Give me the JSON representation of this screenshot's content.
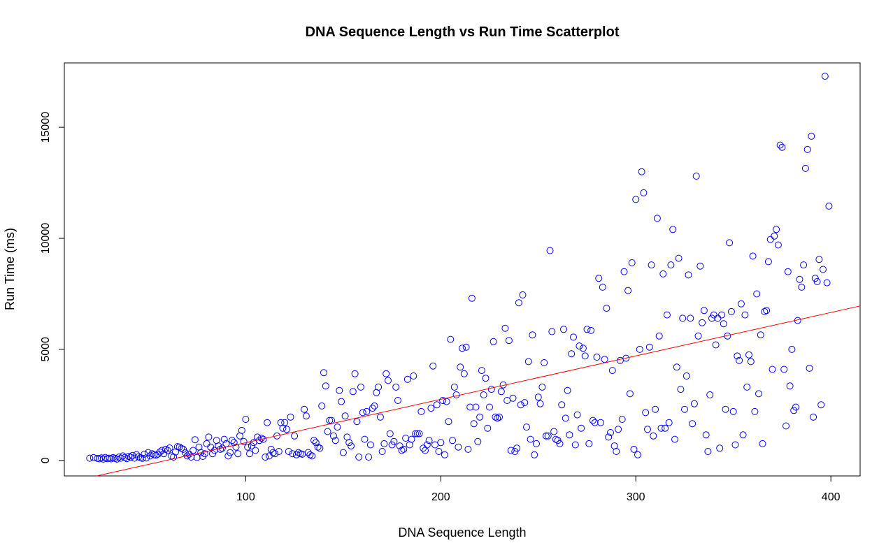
{
  "chart_data": {
    "type": "scatter",
    "title": "DNA Sequence Length vs Run Time Scatterplot",
    "xlabel": "DNA Sequence Length",
    "ylabel": "Run Time (ms)",
    "xlim": [
      7,
      415
    ],
    "ylim": [
      -700,
      17900
    ],
    "x_ticks": [
      100,
      200,
      300,
      400
    ],
    "x_tick_labels": [
      "100",
      "200",
      "300",
      "400"
    ],
    "y_ticks": [
      0,
      5000,
      10000,
      15000
    ],
    "y_tick_labels": [
      "0",
      "5000",
      "10000",
      "15000"
    ],
    "grid": false,
    "legend": "none",
    "point_color": "#0000ff",
    "line_color": "#ff0000",
    "regression_line": {
      "slope": 19.55,
      "intercept": -1160
    },
    "points": [
      [
        20,
        100
      ],
      [
        22,
        120
      ],
      [
        24,
        90
      ],
      [
        25,
        70
      ],
      [
        26,
        110
      ],
      [
        27,
        60
      ],
      [
        28,
        130
      ],
      [
        29,
        80
      ],
      [
        30,
        100
      ],
      [
        31,
        70
      ],
      [
        32,
        120
      ],
      [
        33,
        90
      ],
      [
        34,
        60
      ],
      [
        35,
        150
      ],
      [
        36,
        100
      ],
      [
        37,
        200
      ],
      [
        38,
        130
      ],
      [
        39,
        80
      ],
      [
        40,
        180
      ],
      [
        41,
        140
      ],
      [
        42,
        220
      ],
      [
        43,
        100
      ],
      [
        44,
        260
      ],
      [
        45,
        160
      ],
      [
        46,
        120
      ],
      [
        47,
        90
      ],
      [
        48,
        280
      ],
      [
        49,
        110
      ],
      [
        50,
        350
      ],
      [
        51,
        200
      ],
      [
        52,
        300
      ],
      [
        53,
        250
      ],
      [
        54,
        230
      ],
      [
        55,
        280
      ],
      [
        56,
        380
      ],
      [
        57,
        450
      ],
      [
        58,
        300
      ],
      [
        59,
        500
      ],
      [
        60,
        450
      ],
      [
        61,
        560
      ],
      [
        62,
        200
      ],
      [
        63,
        150
      ],
      [
        64,
        380
      ],
      [
        65,
        620
      ],
      [
        66,
        600
      ],
      [
        67,
        540
      ],
      [
        68,
        500
      ],
      [
        69,
        350
      ],
      [
        70,
        200
      ],
      [
        71,
        280
      ],
      [
        72,
        150
      ],
      [
        73,
        450
      ],
      [
        74,
        930
      ],
      [
        75,
        130
      ],
      [
        76,
        600
      ],
      [
        77,
        350
      ],
      [
        78,
        180
      ],
      [
        79,
        300
      ],
      [
        80,
        750
      ],
      [
        81,
        1050
      ],
      [
        82,
        600
      ],
      [
        83,
        300
      ],
      [
        84,
        450
      ],
      [
        85,
        900
      ],
      [
        86,
        650
      ],
      [
        87,
        500
      ],
      [
        88,
        550
      ],
      [
        89,
        950
      ],
      [
        90,
        750
      ],
      [
        91,
        200
      ],
      [
        92,
        350
      ],
      [
        93,
        900
      ],
      [
        94,
        800
      ],
      [
        95,
        600
      ],
      [
        96,
        300
      ],
      [
        97,
        1100
      ],
      [
        98,
        1350
      ],
      [
        99,
        850
      ],
      [
        100,
        1850
      ],
      [
        101,
        600
      ],
      [
        102,
        300
      ],
      [
        103,
        650
      ],
      [
        104,
        800
      ],
      [
        105,
        450
      ],
      [
        106,
        1050
      ],
      [
        107,
        900
      ],
      [
        108,
        1000
      ],
      [
        109,
        950
      ],
      [
        110,
        150
      ],
      [
        111,
        1700
      ],
      [
        112,
        200
      ],
      [
        113,
        500
      ],
      [
        114,
        350
      ],
      [
        115,
        300
      ],
      [
        116,
        1100
      ],
      [
        117,
        400
      ],
      [
        118,
        1700
      ],
      [
        119,
        1450
      ],
      [
        120,
        1700
      ],
      [
        121,
        1400
      ],
      [
        122,
        400
      ],
      [
        123,
        1950
      ],
      [
        124,
        300
      ],
      [
        125,
        1100
      ],
      [
        126,
        250
      ],
      [
        127,
        350
      ],
      [
        128,
        300
      ],
      [
        129,
        280
      ],
      [
        130,
        2300
      ],
      [
        131,
        2000
      ],
      [
        132,
        350
      ],
      [
        133,
        250
      ],
      [
        134,
        200
      ],
      [
        135,
        900
      ],
      [
        136,
        800
      ],
      [
        137,
        600
      ],
      [
        138,
        550
      ],
      [
        139,
        2450
      ],
      [
        140,
        3950
      ],
      [
        141,
        3350
      ],
      [
        142,
        1300
      ],
      [
        143,
        1800
      ],
      [
        144,
        1800
      ],
      [
        145,
        1100
      ],
      [
        146,
        900
      ],
      [
        147,
        1500
      ],
      [
        148,
        3150
      ],
      [
        149,
        2650
      ],
      [
        150,
        350
      ],
      [
        151,
        2000
      ],
      [
        152,
        1050
      ],
      [
        153,
        800
      ],
      [
        154,
        650
      ],
      [
        155,
        3100
      ],
      [
        156,
        3900
      ],
      [
        157,
        1750
      ],
      [
        158,
        150
      ],
      [
        159,
        3300
      ],
      [
        160,
        2150
      ],
      [
        161,
        950
      ],
      [
        162,
        2200
      ],
      [
        163,
        150
      ],
      [
        164,
        700
      ],
      [
        165,
        2350
      ],
      [
        166,
        2450
      ],
      [
        167,
        3050
      ],
      [
        168,
        3300
      ],
      [
        169,
        1950
      ],
      [
        170,
        400
      ],
      [
        171,
        750
      ],
      [
        172,
        3900
      ],
      [
        173,
        3600
      ],
      [
        174,
        1200
      ],
      [
        175,
        700
      ],
      [
        176,
        850
      ],
      [
        177,
        3300
      ],
      [
        178,
        2700
      ],
      [
        179,
        650
      ],
      [
        180,
        450
      ],
      [
        181,
        500
      ],
      [
        182,
        1000
      ],
      [
        183,
        3650
      ],
      [
        184,
        700
      ],
      [
        185,
        950
      ],
      [
        186,
        3800
      ],
      [
        187,
        1200
      ],
      [
        188,
        1200
      ],
      [
        189,
        1200
      ],
      [
        190,
        2200
      ],
      [
        191,
        550
      ],
      [
        192,
        450
      ],
      [
        193,
        700
      ],
      [
        194,
        900
      ],
      [
        195,
        2350
      ],
      [
        196,
        4250
      ],
      [
        197,
        700
      ],
      [
        198,
        2500
      ],
      [
        199,
        400
      ],
      [
        200,
        800
      ],
      [
        201,
        2700
      ],
      [
        202,
        250
      ],
      [
        203,
        2650
      ],
      [
        204,
        1750
      ],
      [
        205,
        5450
      ],
      [
        206,
        900
      ],
      [
        207,
        3300
      ],
      [
        208,
        2950
      ],
      [
        209,
        600
      ],
      [
        210,
        4200
      ],
      [
        211,
        5050
      ],
      [
        212,
        3900
      ],
      [
        213,
        5100
      ],
      [
        214,
        500
      ],
      [
        215,
        2400
      ],
      [
        216,
        7300
      ],
      [
        217,
        1650
      ],
      [
        218,
        2400
      ],
      [
        219,
        850
      ],
      [
        220,
        1950
      ],
      [
        221,
        4050
      ],
      [
        222,
        2950
      ],
      [
        223,
        3700
      ],
      [
        224,
        1450
      ],
      [
        225,
        2400
      ],
      [
        226,
        3200
      ],
      [
        227,
        5350
      ],
      [
        228,
        1950
      ],
      [
        229,
        1900
      ],
      [
        230,
        1950
      ],
      [
        231,
        3100
      ],
      [
        232,
        3400
      ],
      [
        233,
        5950
      ],
      [
        234,
        2700
      ],
      [
        235,
        5400
      ],
      [
        236,
        450
      ],
      [
        237,
        2800
      ],
      [
        238,
        400
      ],
      [
        239,
        550
      ],
      [
        240,
        7100
      ],
      [
        241,
        2500
      ],
      [
        242,
        7450
      ],
      [
        243,
        2600
      ],
      [
        244,
        1500
      ],
      [
        245,
        4450
      ],
      [
        246,
        950
      ],
      [
        247,
        5650
      ],
      [
        248,
        250
      ],
      [
        249,
        750
      ],
      [
        250,
        2850
      ],
      [
        251,
        2550
      ],
      [
        252,
        3300
      ],
      [
        253,
        4400
      ],
      [
        254,
        1100
      ],
      [
        255,
        1100
      ],
      [
        256,
        9450
      ],
      [
        257,
        5800
      ],
      [
        258,
        1300
      ],
      [
        259,
        950
      ],
      [
        260,
        900
      ],
      [
        261,
        750
      ],
      [
        262,
        2500
      ],
      [
        263,
        5900
      ],
      [
        264,
        1900
      ],
      [
        265,
        3150
      ],
      [
        266,
        1150
      ],
      [
        267,
        4800
      ],
      [
        268,
        5550
      ],
      [
        269,
        700
      ],
      [
        270,
        2050
      ],
      [
        271,
        5150
      ],
      [
        272,
        1450
      ],
      [
        273,
        5050
      ],
      [
        274,
        4700
      ],
      [
        275,
        5900
      ],
      [
        276,
        750
      ],
      [
        277,
        5850
      ],
      [
        278,
        1800
      ],
      [
        279,
        1700
      ],
      [
        280,
        4650
      ],
      [
        281,
        8200
      ],
      [
        282,
        1700
      ],
      [
        283,
        7800
      ],
      [
        284,
        4550
      ],
      [
        285,
        6850
      ],
      [
        286,
        1050
      ],
      [
        287,
        1250
      ],
      [
        288,
        4050
      ],
      [
        289,
        650
      ],
      [
        290,
        400
      ],
      [
        291,
        1400
      ],
      [
        292,
        4500
      ],
      [
        293,
        1850
      ],
      [
        294,
        8500
      ],
      [
        295,
        4600
      ],
      [
        296,
        7650
      ],
      [
        297,
        3000
      ],
      [
        298,
        8900
      ],
      [
        299,
        500
      ],
      [
        300,
        11750
      ],
      [
        301,
        250
      ],
      [
        302,
        5000
      ],
      [
        303,
        13000
      ],
      [
        304,
        12050
      ],
      [
        305,
        2150
      ],
      [
        306,
        1400
      ],
      [
        307,
        5100
      ],
      [
        308,
        8800
      ],
      [
        309,
        1100
      ],
      [
        310,
        2300
      ],
      [
        311,
        10900
      ],
      [
        312,
        5600
      ],
      [
        313,
        1450
      ],
      [
        314,
        8400
      ],
      [
        315,
        1450
      ],
      [
        316,
        6550
      ],
      [
        317,
        1700
      ],
      [
        318,
        8800
      ],
      [
        319,
        10400
      ],
      [
        320,
        950
      ],
      [
        321,
        4200
      ],
      [
        322,
        9100
      ],
      [
        323,
        3200
      ],
      [
        324,
        6400
      ],
      [
        325,
        2300
      ],
      [
        326,
        3800
      ],
      [
        327,
        8350
      ],
      [
        328,
        6400
      ],
      [
        329,
        1650
      ],
      [
        330,
        2550
      ],
      [
        331,
        12800
      ],
      [
        332,
        5600
      ],
      [
        333,
        8750
      ],
      [
        334,
        6200
      ],
      [
        335,
        6750
      ],
      [
        336,
        1150
      ],
      [
        337,
        400
      ],
      [
        338,
        2950
      ],
      [
        339,
        6400
      ],
      [
        340,
        6550
      ],
      [
        341,
        5200
      ],
      [
        342,
        6400
      ],
      [
        343,
        550
      ],
      [
        344,
        6550
      ],
      [
        345,
        6150
      ],
      [
        346,
        2300
      ],
      [
        347,
        5600
      ],
      [
        348,
        9800
      ],
      [
        349,
        6700
      ],
      [
        350,
        2200
      ],
      [
        351,
        700
      ],
      [
        352,
        4700
      ],
      [
        353,
        4500
      ],
      [
        354,
        7050
      ],
      [
        355,
        1150
      ],
      [
        356,
        6550
      ],
      [
        357,
        3300
      ],
      [
        358,
        4750
      ],
      [
        359,
        4450
      ],
      [
        360,
        9200
      ],
      [
        361,
        2200
      ],
      [
        362,
        7500
      ],
      [
        363,
        3000
      ],
      [
        364,
        5650
      ],
      [
        365,
        750
      ],
      [
        366,
        6700
      ],
      [
        367,
        6750
      ],
      [
        368,
        8950
      ],
      [
        369,
        9950
      ],
      [
        370,
        4100
      ],
      [
        371,
        10100
      ],
      [
        372,
        10400
      ],
      [
        373,
        9700
      ],
      [
        374,
        14200
      ],
      [
        375,
        14100
      ],
      [
        376,
        4100
      ],
      [
        377,
        1550
      ],
      [
        378,
        8500
      ],
      [
        379,
        3350
      ],
      [
        380,
        5000
      ],
      [
        381,
        2250
      ],
      [
        382,
        2400
      ],
      [
        383,
        6300
      ],
      [
        384,
        8150
      ],
      [
        385,
        7800
      ],
      [
        386,
        8800
      ],
      [
        387,
        13150
      ],
      [
        388,
        14000
      ],
      [
        389,
        4150
      ],
      [
        390,
        14600
      ],
      [
        391,
        1950
      ],
      [
        392,
        8200
      ],
      [
        393,
        8050
      ],
      [
        394,
        9050
      ],
      [
        395,
        2500
      ],
      [
        396,
        8600
      ],
      [
        397,
        17300
      ],
      [
        398,
        8000
      ],
      [
        399,
        11450
      ]
    ]
  }
}
